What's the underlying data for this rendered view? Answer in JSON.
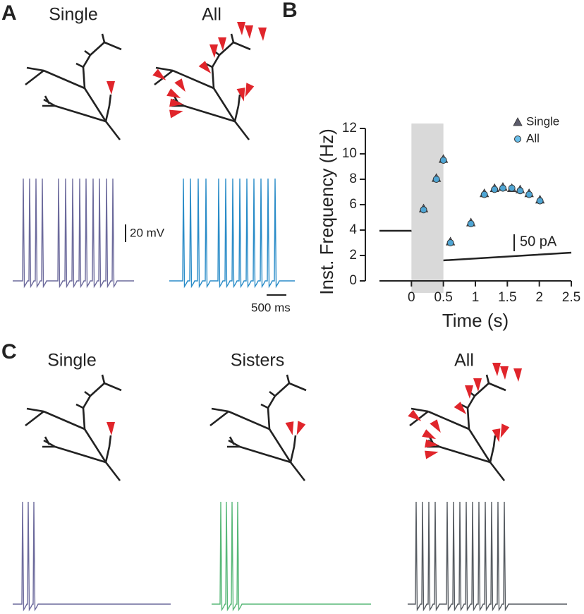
{
  "panels": {
    "a": {
      "label": "A",
      "titles": [
        "Single",
        "All"
      ],
      "scale_voltage": "20 mV",
      "scale_time": "500 ms"
    },
    "b": {
      "label": "B",
      "current_scale": "50 pA"
    },
    "c": {
      "label": "C",
      "titles": [
        "Single",
        "Sisters",
        "All"
      ]
    }
  },
  "chart_data": {
    "type": "scatter",
    "x_label": "Time (s)",
    "y_label": "Inst. Frequency (Hz)",
    "xlim": [
      -0.5,
      2.5
    ],
    "xticks": [
      0,
      0.5,
      1,
      1.5,
      2,
      2.5
    ],
    "ylim": [
      0,
      12
    ],
    "yticks": [
      0,
      2,
      4,
      6,
      8,
      10,
      12
    ],
    "highlight_x": [
      0,
      0.5
    ],
    "legend": "upper right",
    "series": [
      {
        "name": "Single",
        "color": "#5b5b6b",
        "marker": "triangle",
        "x": [
          0.19,
          0.39,
          0.5,
          0.61,
          0.93,
          1.14,
          1.3,
          1.43,
          1.57,
          1.7,
          1.84,
          2.01
        ],
        "values": [
          5.7,
          8.1,
          9.6,
          3.1,
          4.6,
          6.9,
          7.3,
          7.4,
          7.3,
          7.2,
          6.9,
          6.4
        ]
      },
      {
        "name": "All",
        "color": "#4db3e6",
        "marker": "circle",
        "x": [
          0.19,
          0.39,
          0.5,
          0.61,
          0.93,
          1.14,
          1.3,
          1.43,
          1.57,
          1.7,
          1.84,
          2.01
        ],
        "values": [
          5.6,
          8.0,
          9.5,
          3.0,
          4.5,
          6.8,
          7.2,
          7.3,
          7.3,
          7.1,
          6.8,
          6.3
        ]
      }
    ]
  }
}
